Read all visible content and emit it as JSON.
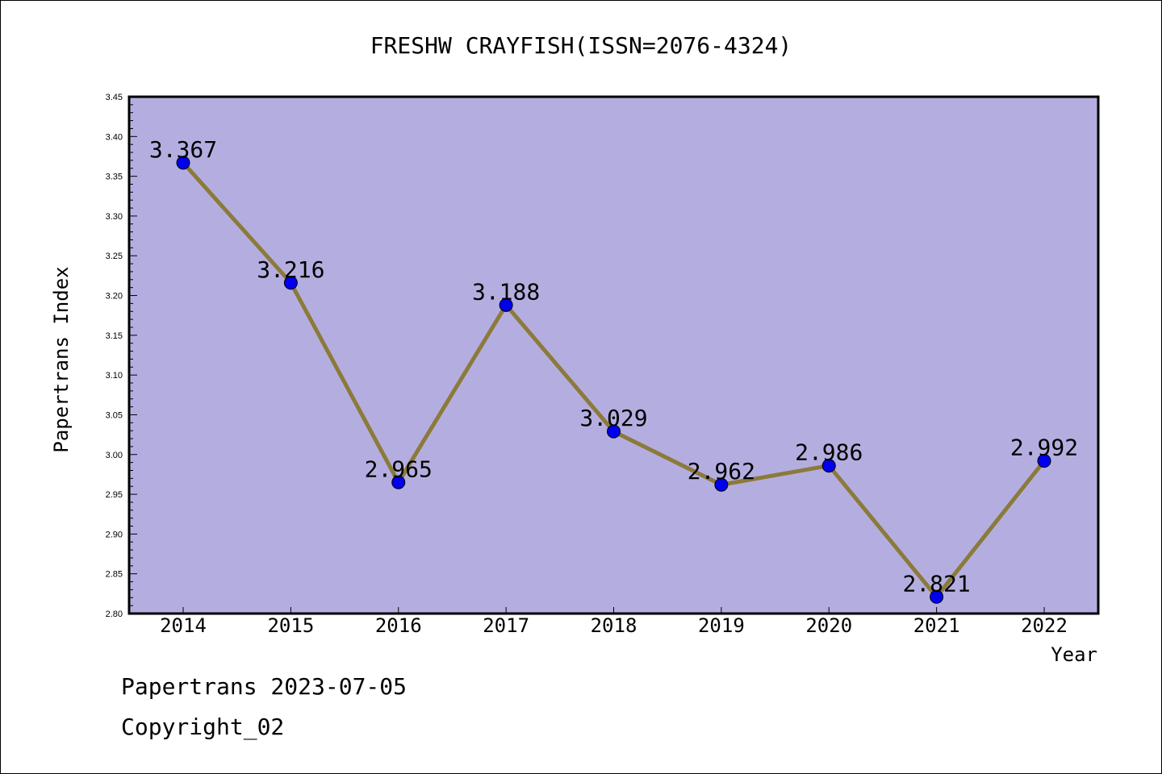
{
  "chart_data": {
    "type": "line",
    "title": "FRESHW CRAYFISH(ISSN=2076-4324)",
    "xlabel": "Year",
    "ylabel": "Papertrans Index",
    "categories": [
      "2014",
      "2015",
      "2016",
      "2017",
      "2018",
      "2019",
      "2020",
      "2021",
      "2022"
    ],
    "series": [
      {
        "values": [
          3.367,
          3.216,
          2.965,
          3.188,
          3.029,
          2.962,
          2.986,
          2.821,
          2.992
        ],
        "labels": [
          "3.367",
          "3.216",
          "2.965",
          "3.188",
          "3.029",
          "2.962",
          "2.986",
          "2.821",
          "2.992"
        ],
        "line_color": "#8b7a3a",
        "marker_color": "#0000ee"
      }
    ],
    "ylim": [
      2.8,
      3.45
    ],
    "yticks": [
      "2.80",
      "2.85",
      "2.90",
      "2.95",
      "3.00",
      "3.05",
      "3.10",
      "3.15",
      "3.20",
      "3.25",
      "3.30",
      "3.35",
      "3.40",
      "3.45"
    ],
    "plot_background": "#b4aee0",
    "grid": false,
    "legend": "none"
  },
  "footer": {
    "line1": "Papertrans 2023-07-05",
    "line2": "Copyright_02"
  }
}
